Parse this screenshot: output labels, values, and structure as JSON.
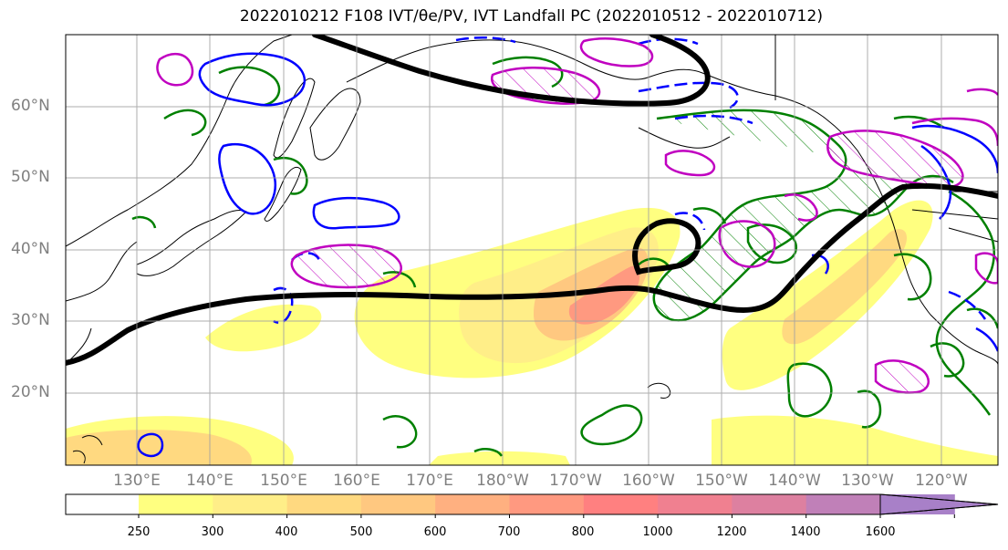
{
  "title": "2022010212 F108 IVT/θe/PV, IVT Landfall PC (2022010512 - 2022010712)",
  "latitude_labels": [
    "60°N",
    "50°N",
    "40°N",
    "30°N",
    "20°N"
  ],
  "longitude_labels": [
    "130°E",
    "140°E",
    "150°E",
    "160°E",
    "170°E",
    "180°W",
    "170°W",
    "160°W",
    "150°W",
    "140°W",
    "130°W",
    "120°W"
  ],
  "colorbar": {
    "ticks": [
      "250",
      "300",
      "400",
      "500",
      "600",
      "700",
      "800",
      "1000",
      "1200",
      "1400",
      "1600"
    ],
    "colors": [
      "#ffff80",
      "#ffee88",
      "#ffd980",
      "#ffc880",
      "#ffb080",
      "#ff9980",
      "#ff8080",
      "#f08090",
      "#dd80a0",
      "#c080b8",
      "#a880c8"
    ],
    "extend": "max"
  },
  "colors": {
    "coast": "#000000",
    "green_contour": "#008000",
    "blue_contour": "#0000ff",
    "magenta_contour": "#c000c0",
    "black_contour": "#000000",
    "grid": "#a0a0a0"
  }
}
